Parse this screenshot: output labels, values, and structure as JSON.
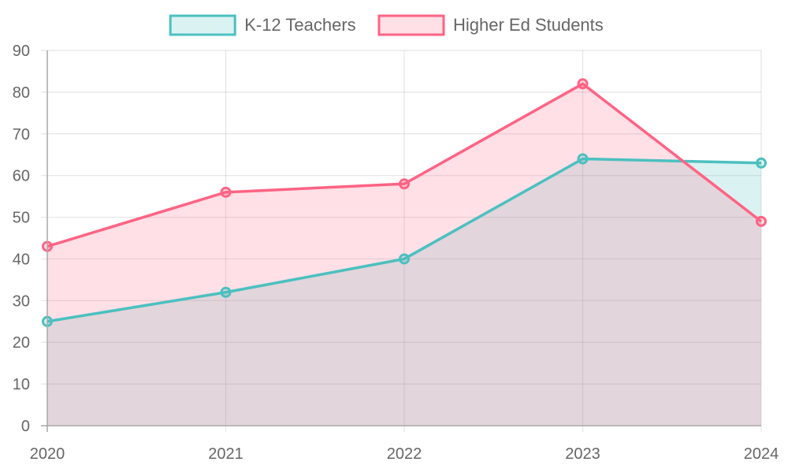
{
  "chart_data": {
    "type": "area",
    "categories": [
      "2020",
      "2021",
      "2022",
      "2023",
      "2024"
    ],
    "series": [
      {
        "name": "K-12 Teachers",
        "values": [
          25,
          32,
          40,
          64,
          63
        ],
        "color": "#4BC0C0",
        "fill": "#4BC0C033"
      },
      {
        "name": "Higher Ed Students",
        "values": [
          43,
          56,
          58,
          82,
          49
        ],
        "color": "#FF6384",
        "fill": "#FF638433"
      }
    ],
    "yticks": [
      "0",
      "10",
      "20",
      "30",
      "40",
      "50",
      "60",
      "70",
      "80",
      "90"
    ],
    "ylim": [
      0,
      90
    ],
    "grid": true,
    "legend_position": "top"
  }
}
